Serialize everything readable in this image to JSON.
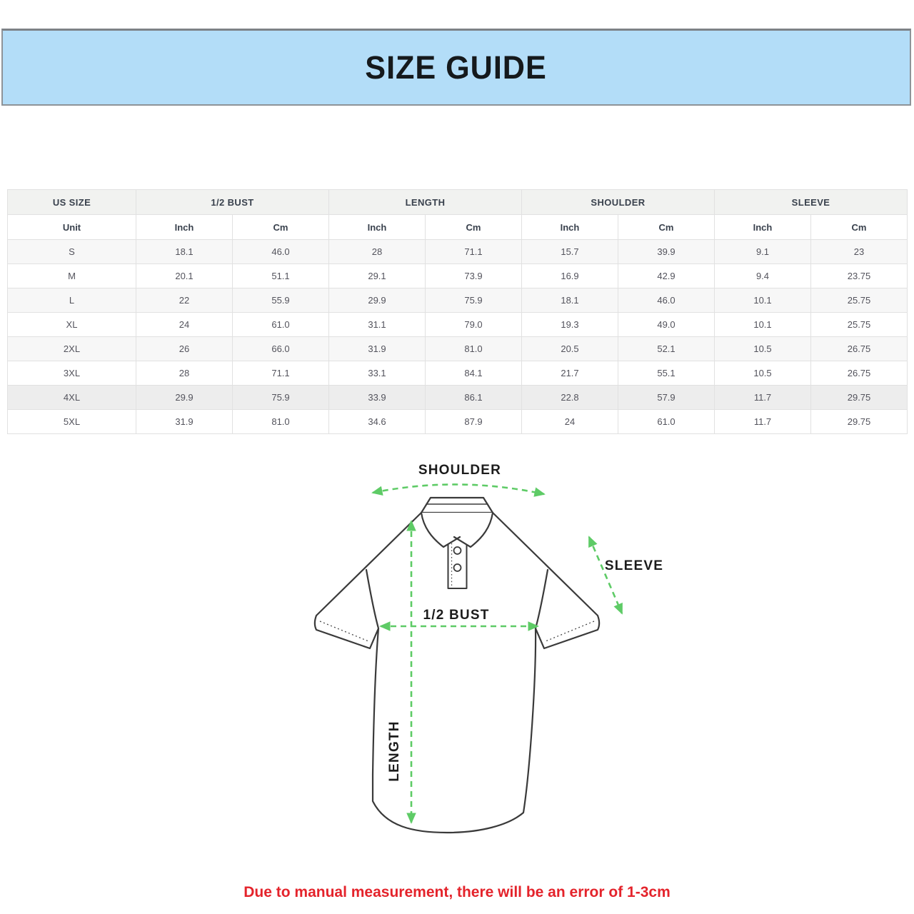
{
  "banner": {
    "title": "SIZE GUIDE",
    "bg_color": "#b3ddf8"
  },
  "table": {
    "groups": [
      {
        "label": "US SIZE",
        "span": 1
      },
      {
        "label": "1/2 BUST",
        "span": 2
      },
      {
        "label": "LENGTH",
        "span": 2
      },
      {
        "label": "SHOULDER",
        "span": 2
      },
      {
        "label": "SLEEVE",
        "span": 2
      }
    ],
    "unit_row": [
      "Unit",
      "Inch",
      "Cm",
      "Inch",
      "Cm",
      "Inch",
      "Cm",
      "Inch",
      "Cm"
    ],
    "rows": [
      [
        "S",
        "18.1",
        "46.0",
        "28",
        "71.1",
        "15.7",
        "39.9",
        "9.1",
        "23"
      ],
      [
        "M",
        "20.1",
        "51.1",
        "29.1",
        "73.9",
        "16.9",
        "42.9",
        "9.4",
        "23.75"
      ],
      [
        "L",
        "22",
        "55.9",
        "29.9",
        "75.9",
        "18.1",
        "46.0",
        "10.1",
        "25.75"
      ],
      [
        "XL",
        "24",
        "61.0",
        "31.1",
        "79.0",
        "19.3",
        "49.0",
        "10.1",
        "25.75"
      ],
      [
        "2XL",
        "26",
        "66.0",
        "31.9",
        "81.0",
        "20.5",
        "52.1",
        "10.5",
        "26.75"
      ],
      [
        "3XL",
        "28",
        "71.1",
        "33.1",
        "84.1",
        "21.7",
        "55.1",
        "10.5",
        "26.75"
      ],
      [
        "4XL",
        "29.9",
        "75.9",
        "33.9",
        "86.1",
        "22.8",
        "57.9",
        "11.7",
        "29.75"
      ],
      [
        "5XL",
        "31.9",
        "81.0",
        "34.6",
        "87.9",
        "24",
        "61.0",
        "11.7",
        "29.75"
      ]
    ]
  },
  "diagram": {
    "labels": {
      "shoulder": "SHOULDER",
      "sleeve": "SLEEVE",
      "bust": "1/2 BUST",
      "length": "LENGTH"
    },
    "arrow_color": "#5ecb66",
    "outline_color": "#3a3a3a"
  },
  "note": {
    "text": "Due to manual measurement, there will be an error of 1-3cm",
    "color": "#e4232b"
  }
}
